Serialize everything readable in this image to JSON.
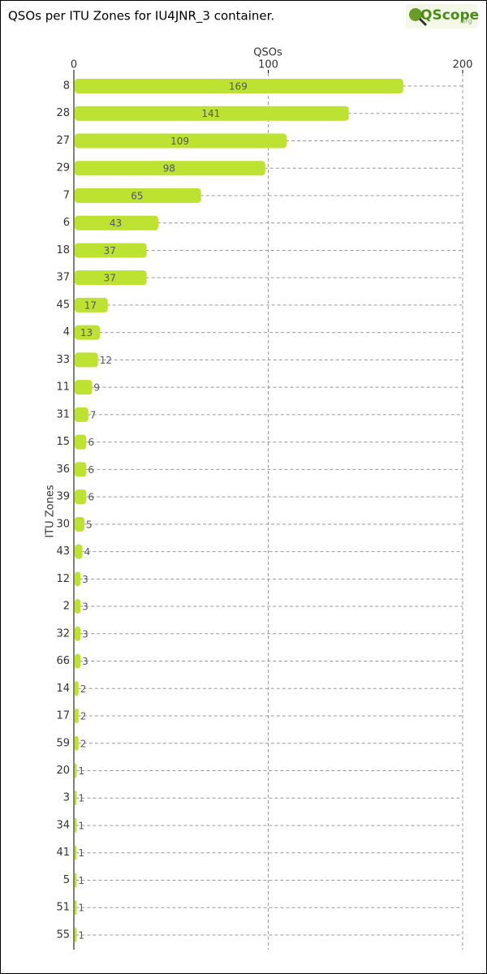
{
  "chart_data": {
    "type": "hbar",
    "title": "QSOs per ITU Zones for IU4JNR_3 container.",
    "logo": "QScope",
    "logo_suffix": ".org",
    "x_label": "QSOs",
    "y_label": "ITU Zones",
    "categories": [
      "8",
      "28",
      "27",
      "29",
      "7",
      "6",
      "18",
      "37",
      "45",
      "4",
      "33",
      "11",
      "31",
      "15",
      "36",
      "39",
      "30",
      "43",
      "12",
      "2",
      "32",
      "66",
      "14",
      "17",
      "59",
      "20",
      "3",
      "34",
      "41",
      "5",
      "51",
      "55"
    ],
    "values": [
      169,
      141,
      109,
      98,
      65,
      43,
      37,
      37,
      17,
      13,
      12,
      9,
      7,
      6,
      6,
      6,
      5,
      4,
      3,
      3,
      3,
      3,
      2,
      2,
      2,
      1,
      1,
      1,
      1,
      1,
      1,
      1
    ],
    "color": "#bde231",
    "xlim": [
      0,
      200
    ],
    "xticks": [
      0,
      100,
      200
    ],
    "grid": true
  }
}
